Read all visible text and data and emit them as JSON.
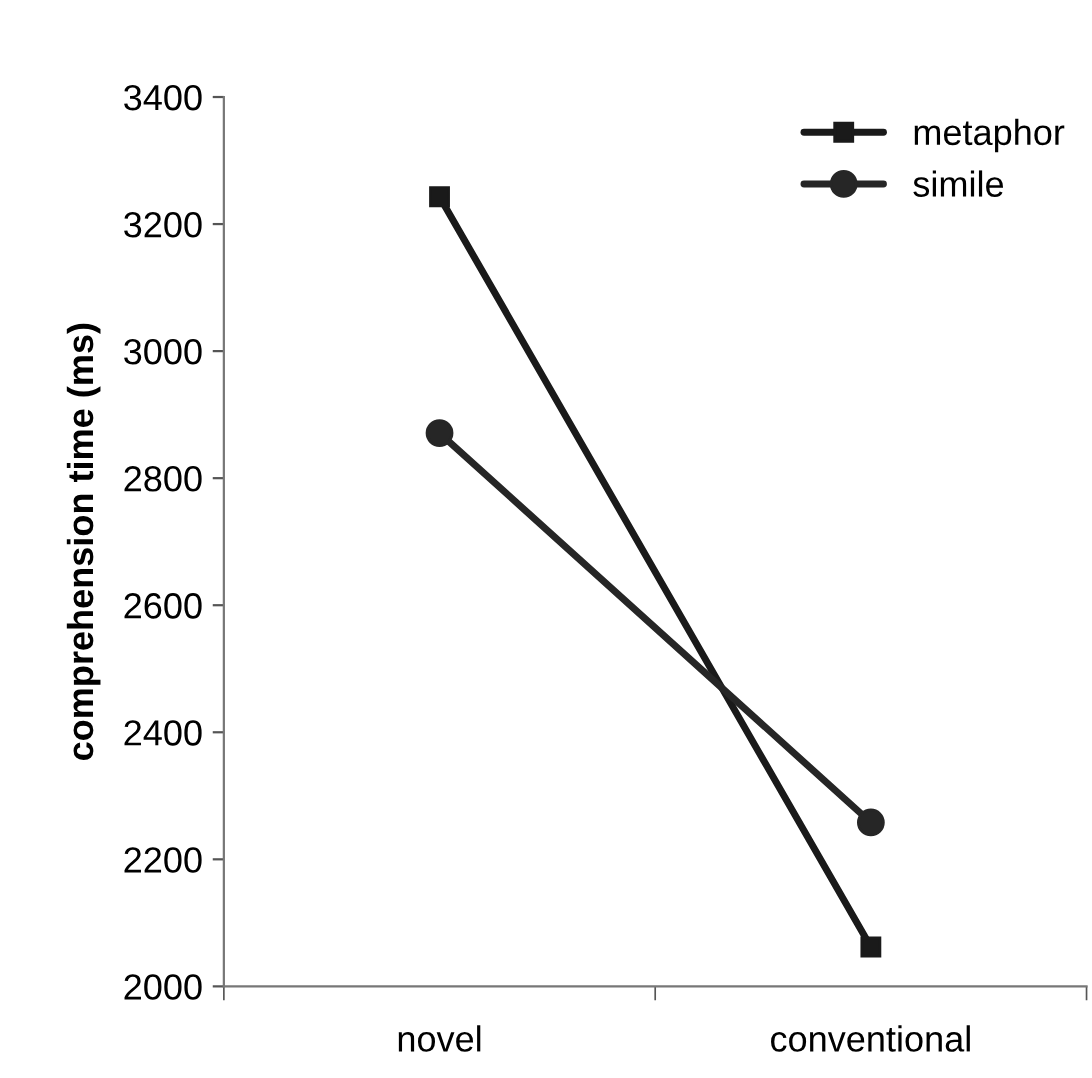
{
  "chart_data": {
    "type": "line",
    "ylabel": "comprehension time (ms)",
    "categories": [
      "novel",
      "conventional"
    ],
    "series": [
      {
        "name": "metaphor",
        "color": "#1a1a1a",
        "values": [
          3243,
          2062
        ],
        "marker": "square"
      },
      {
        "name": "simile",
        "color": "#262626",
        "values": [
          2871,
          2258
        ],
        "marker": "circle"
      }
    ],
    "ylim": [
      2000,
      3400
    ],
    "yticks": [
      2000,
      2200,
      2400,
      2600,
      2800,
      3000,
      3200,
      3400
    ],
    "legend": "top right",
    "grid": false,
    "line_style": "solid"
  }
}
